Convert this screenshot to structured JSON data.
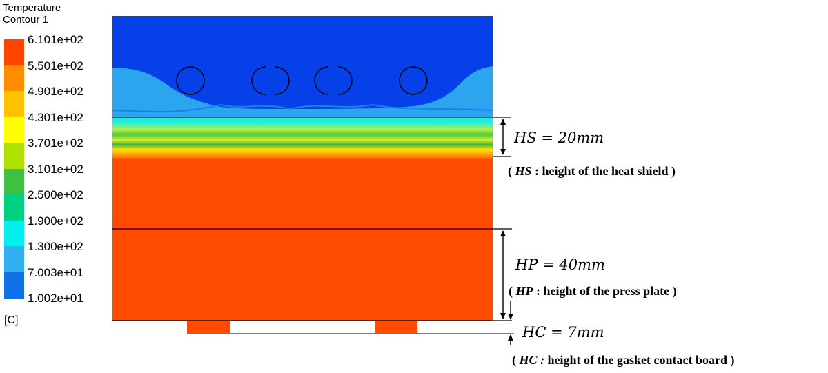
{
  "legend": {
    "title_line1": "Temperature",
    "title_line2": "Contour 1",
    "unit": "[C]",
    "ticks": [
      "6.101e+02",
      "5.501e+02",
      "4.901e+02",
      "4.301e+02",
      "3.701e+02",
      "3.101e+02",
      "2.500e+02",
      "1.900e+02",
      "1.300e+02",
      "7.003e+01",
      "1.002e+01"
    ],
    "colors": [
      "#ff4500",
      "#ff8c00",
      "#ffc000",
      "#ffff00",
      "#b0e000",
      "#40c040",
      "#00d080",
      "#00f0f0",
      "#30b0f0",
      "#1070e8",
      "#0040e8"
    ]
  },
  "contour_colors": {
    "hot": "#ff4b00",
    "cold": "#0640e8",
    "cool": "#2aa5ee",
    "frame": "#000000"
  },
  "annotations": {
    "hs": {
      "var": "HS",
      "eq": " = 20mm",
      "note_var": "HS",
      "note_text": " : height of the heat shield )"
    },
    "hp": {
      "var": "HP",
      "eq": " = 40mm",
      "note_var": "HP",
      "note_text": " : height of the press plate )"
    },
    "hc": {
      "var": "HC",
      "eq": " = 7mm",
      "note_var": "HC :",
      "note_text": " height of the gasket contact board )"
    }
  }
}
